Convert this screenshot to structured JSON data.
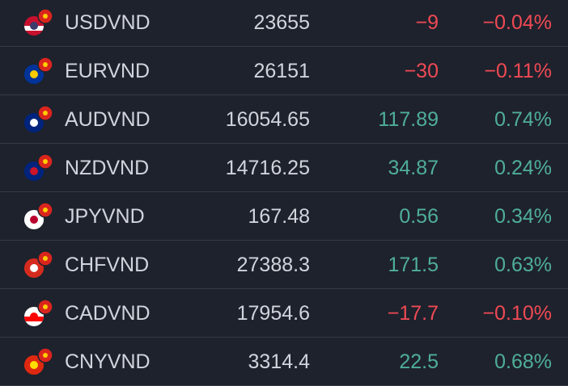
{
  "table": {
    "rows": [
      [
        "USDVND",
        "23655",
        "−9",
        "−0.04%"
      ],
      [
        "EURVND",
        "26151",
        "−30",
        "−0.11%"
      ],
      [
        "AUDVND",
        "16054.65",
        "117.89",
        "0.74%"
      ],
      [
        "NZDVND",
        "14716.25",
        "34.87",
        "0.24%"
      ],
      [
        "JPYVND",
        "167.48",
        "0.56",
        "0.34%"
      ],
      [
        "CHFVND",
        "27388.3",
        "171.5",
        "0.63%"
      ],
      [
        "CADVND",
        "17954.6",
        "−17.7",
        "−0.10%"
      ],
      [
        "CNYVND",
        "3314.4",
        "22.5",
        "0.68%"
      ]
    ]
  }
}
